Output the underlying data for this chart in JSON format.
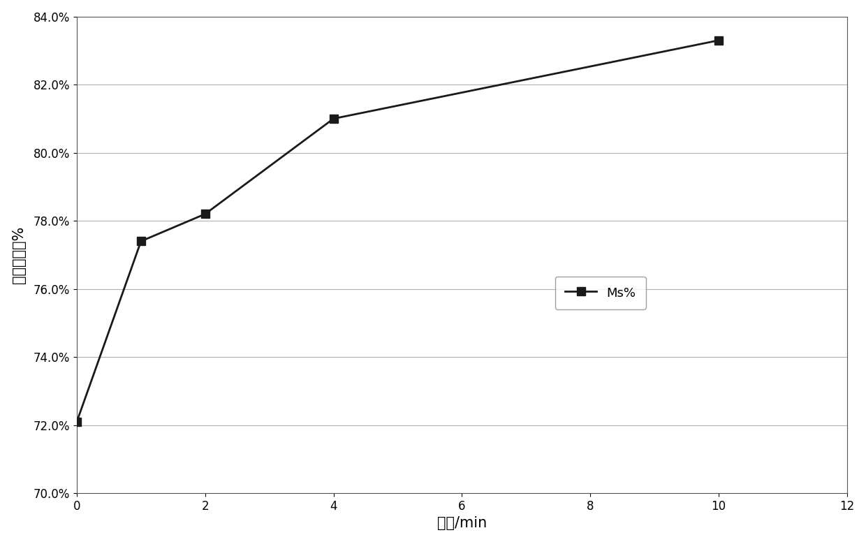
{
  "x": [
    0,
    1,
    2,
    4,
    10
  ],
  "y": [
    0.721,
    0.774,
    0.782,
    0.81,
    0.833
  ],
  "xlabel": "时间/min",
  "ylabel": "相对磁饱和%",
  "xlim": [
    0,
    12
  ],
  "ylim": [
    0.7,
    0.84
  ],
  "xticks": [
    0,
    2,
    4,
    6,
    8,
    10,
    12
  ],
  "yticks": [
    0.7,
    0.72,
    0.74,
    0.76,
    0.78,
    0.8,
    0.82,
    0.84
  ],
  "legend_label": "Ms%",
  "line_color": "#1a1a1a",
  "marker": "s",
  "marker_size": 8,
  "line_width": 2,
  "background_color": "#ffffff",
  "grid_color": "#b0b0b0",
  "font_size_label": 15,
  "font_size_tick": 12
}
